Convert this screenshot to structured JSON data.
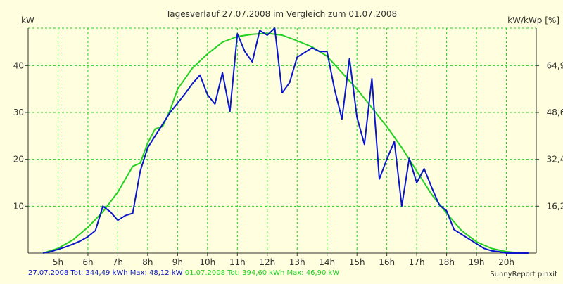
{
  "chart_data": {
    "type": "line",
    "title": "Tagesverlauf 27.07.2008 im Vergleich zum 01.07.2008",
    "ylabel": "kW",
    "y2label": "kW/kWp [%]",
    "xlabel": "",
    "xlim": [
      4.0,
      21.0
    ],
    "ylim": [
      0,
      48
    ],
    "x_ticks": [
      5,
      6,
      7,
      8,
      9,
      10,
      11,
      12,
      13,
      14,
      15,
      16,
      17,
      18,
      19,
      20
    ],
    "x_tick_labels": [
      "5h",
      "6h",
      "7h",
      "8h",
      "9h",
      "10h",
      "11h",
      "12h",
      "13h",
      "14h",
      "15h",
      "16h",
      "17h",
      "18h",
      "19h",
      "20h"
    ],
    "y_ticks": [
      10,
      20,
      30,
      40
    ],
    "y_tick_labels": [
      "10",
      "20",
      "30",
      "40"
    ],
    "y2_ticks": [
      10,
      20,
      30,
      40
    ],
    "y2_tick_labels": [
      "16,2",
      "32,4",
      "48,6",
      "64,9"
    ],
    "grid": true,
    "colors": {
      "series_blue": "#0a16c8",
      "series_green": "#22d022",
      "grid": "#22d022",
      "axis": "#333333",
      "background": "#ffffdf"
    },
    "series": [
      {
        "name": "27.07.2008",
        "x": [
          4.5,
          4.75,
          5.0,
          5.25,
          5.5,
          5.75,
          6.0,
          6.25,
          6.5,
          6.75,
          7.0,
          7.25,
          7.5,
          7.75,
          8.0,
          8.25,
          8.5,
          8.75,
          9.0,
          9.25,
          9.5,
          9.75,
          10.0,
          10.25,
          10.5,
          10.75,
          11.0,
          11.25,
          11.5,
          11.75,
          12.0,
          12.25,
          12.5,
          12.75,
          13.0,
          13.25,
          13.5,
          13.75,
          14.0,
          14.25,
          14.5,
          14.75,
          15.0,
          15.25,
          15.5,
          15.75,
          16.0,
          16.25,
          16.5,
          16.75,
          17.0,
          17.25,
          17.5,
          17.75,
          18.0,
          18.25,
          18.5,
          18.75,
          19.0,
          19.25,
          19.5,
          19.75,
          20.0,
          20.25,
          20.5,
          20.75
        ],
        "values": [
          0.0,
          0.3,
          0.8,
          1.3,
          1.9,
          2.6,
          3.5,
          4.8,
          10.0,
          8.8,
          7.0,
          8.0,
          8.5,
          17.5,
          22.5,
          25.0,
          27.5,
          30.0,
          32.0,
          34.0,
          36.2,
          38.0,
          33.8,
          31.8,
          38.5,
          30.2,
          46.8,
          43.0,
          40.8,
          47.5,
          46.5,
          48.0,
          34.2,
          36.4,
          41.8,
          42.8,
          43.8,
          43.0,
          43.0,
          35.0,
          28.6,
          41.5,
          29.0,
          23.2,
          37.2,
          15.8,
          20.0,
          23.8,
          10.0,
          20.2,
          15.0,
          18.0,
          14.0,
          10.3,
          9.0,
          5.0,
          4.0,
          3.0,
          2.0,
          1.0,
          0.5,
          0.3,
          0.0,
          0.0,
          0.0,
          0.0
        ]
      },
      {
        "name": "01.07.2008",
        "x": [
          4.5,
          5.0,
          5.5,
          6.0,
          6.5,
          7.0,
          7.5,
          7.75,
          8.0,
          8.25,
          8.5,
          8.75,
          9.0,
          9.5,
          10.0,
          10.5,
          11.0,
          11.5,
          12.0,
          12.5,
          13.0,
          13.5,
          14.0,
          14.5,
          15.0,
          15.5,
          16.0,
          16.5,
          17.0,
          17.5,
          18.0,
          18.5,
          19.0,
          19.5,
          20.0,
          20.5,
          20.75
        ],
        "values": [
          0.0,
          1.0,
          2.8,
          5.5,
          8.8,
          13.0,
          18.5,
          19.2,
          23.5,
          26.5,
          27.0,
          30.5,
          35.0,
          39.5,
          42.5,
          45.0,
          46.2,
          46.7,
          46.9,
          46.5,
          45.3,
          44.0,
          42.0,
          38.5,
          35.0,
          31.0,
          27.0,
          22.5,
          17.5,
          12.5,
          8.5,
          4.8,
          2.4,
          1.0,
          0.3,
          0.0,
          0.0
        ]
      }
    ],
    "footer": {
      "blue_text": "27.07.2008 Tot: 344,49 kWh Max: 48,12 kW",
      "green_text": "01.07.2008 Tot: 394,60 kWh Max: 46,90 kW",
      "credit": "SunnyReport pinxit"
    }
  }
}
